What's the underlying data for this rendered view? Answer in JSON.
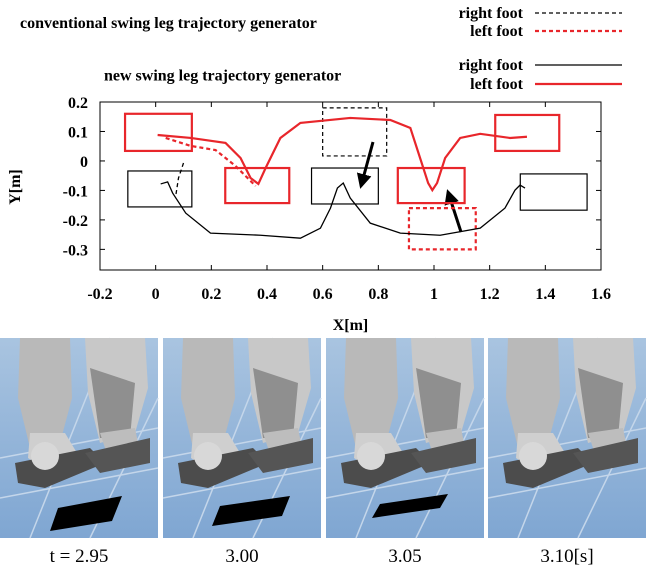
{
  "chart_data": {
    "type": "line",
    "xlabel": "X[m]",
    "ylabel": "Y[m]",
    "xlim": [
      -0.2,
      1.6
    ],
    "ylim": [
      -0.37,
      0.2
    ],
    "xticks": [
      -0.2,
      0,
      0.2,
      0.4,
      0.6,
      0.8,
      1,
      1.2,
      1.4,
      1.6
    ],
    "yticks": [
      0.2,
      0.1,
      0,
      -0.1,
      -0.2,
      -0.3
    ],
    "series_groups": [
      {
        "title": "conventional swing leg trajectory generator",
        "dashed": true,
        "series": [
          {
            "name": "right foot",
            "color": "#000000",
            "x": [
              0.1,
              0.082,
              0.072
            ],
            "values": [
              -0.007,
              -0.058,
              -0.119
            ]
          },
          {
            "name": "left foot",
            "color": "#e8262b",
            "x": [
              0.036,
              0.126,
              0.215,
              0.287,
              0.359
            ],
            "values": [
              0.078,
              0.051,
              0.037,
              -0.017,
              -0.085
            ]
          }
        ]
      },
      {
        "title": "new swing leg trajectory generator",
        "dashed": false,
        "series": [
          {
            "name": "right foot",
            "color": "#000000",
            "x": [
              0.018,
              0.043,
              0.061,
              0.108,
              0.197,
              0.377,
              0.52,
              0.592,
              0.628,
              0.653,
              0.674,
              0.699,
              0.771,
              0.879,
              1.022,
              1.166,
              1.255,
              1.291,
              1.309,
              1.327
            ],
            "values": [
              -0.078,
              -0.071,
              -0.109,
              -0.177,
              -0.245,
              -0.252,
              -0.262,
              -0.228,
              -0.16,
              -0.092,
              -0.075,
              -0.126,
              -0.211,
              -0.245,
              -0.252,
              -0.228,
              -0.16,
              -0.099,
              -0.082,
              -0.092
            ]
          },
          {
            "name": "left foot",
            "color": "#e8262b",
            "x": [
              0.007,
              0.126,
              0.251,
              0.305,
              0.341,
              0.369,
              0.395,
              0.448,
              0.52,
              0.699,
              0.843,
              0.915,
              0.95,
              0.979,
              0.994,
              1.011,
              1.04,
              1.094,
              1.166,
              1.273,
              1.334
            ],
            "values": [
              0.088,
              0.078,
              0.061,
              0.01,
              -0.058,
              -0.078,
              -0.024,
              0.078,
              0.129,
              0.146,
              0.139,
              0.112,
              0.01,
              -0.075,
              -0.099,
              -0.075,
              0.01,
              0.078,
              0.092,
              0.078,
              0.082
            ]
          }
        ]
      }
    ],
    "footsteps": [
      {
        "x": [
          -0.11,
          0.13
        ],
        "y": [
          0.034,
          0.16
        ],
        "color": "#e8262b",
        "dashed": false
      },
      {
        "x": [
          0.25,
          0.48
        ],
        "y": [
          -0.143,
          -0.024
        ],
        "color": "#e8262b",
        "dashed": false
      },
      {
        "x": [
          0.87,
          1.11
        ],
        "y": [
          -0.143,
          -0.024
        ],
        "color": "#e8262b",
        "dashed": false
      },
      {
        "x": [
          1.22,
          1.45
        ],
        "y": [
          0.034,
          0.156
        ],
        "color": "#e8262b",
        "dashed": false
      },
      {
        "x": [
          -0.1,
          0.13
        ],
        "y": [
          -0.156,
          -0.034
        ],
        "color": "#000000",
        "dashed": false
      },
      {
        "x": [
          0.56,
          0.8
        ],
        "y": [
          -0.146,
          -0.024
        ],
        "color": "#000000",
        "dashed": false
      },
      {
        "x": [
          1.31,
          1.55
        ],
        "y": [
          -0.167,
          -0.044
        ],
        "color": "#000000",
        "dashed": false
      },
      {
        "x": [
          0.6,
          0.83
        ],
        "y": [
          0.017,
          0.18
        ],
        "color": "#000000",
        "dashed": true
      },
      {
        "x": [
          0.91,
          1.15
        ],
        "y": [
          -0.3,
          -0.16
        ],
        "color": "#e8262b",
        "dashed": true
      }
    ]
  },
  "frames": [
    {
      "caption": "t = 2.95"
    },
    {
      "caption": "3.00"
    },
    {
      "caption": "3.05"
    },
    {
      "caption": "3.10[s]"
    }
  ]
}
